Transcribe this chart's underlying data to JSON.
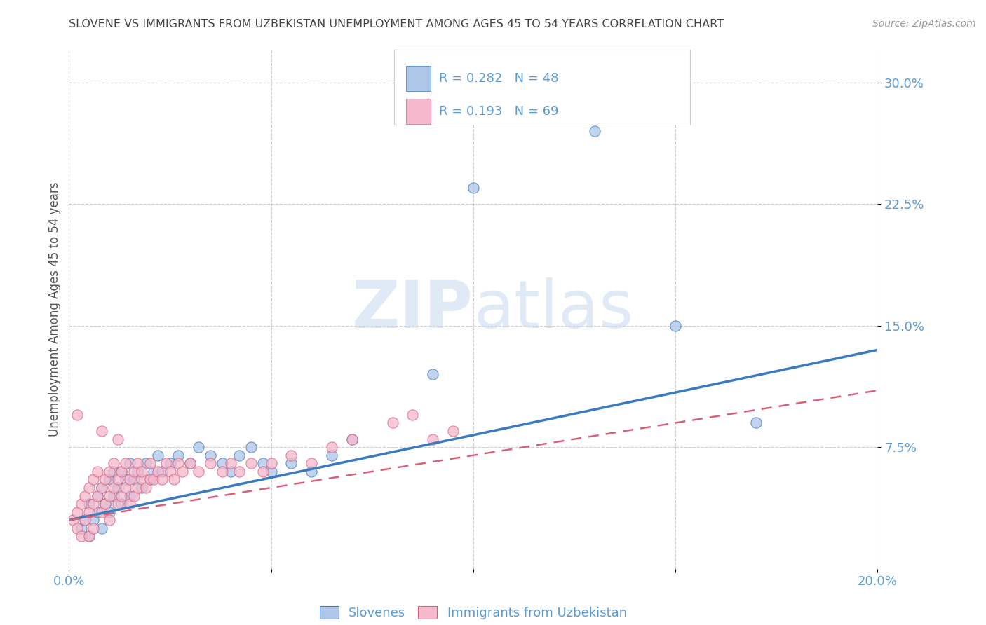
{
  "title": "SLOVENE VS IMMIGRANTS FROM UZBEKISTAN UNEMPLOYMENT AMONG AGES 45 TO 54 YEARS CORRELATION CHART",
  "source": "Source: ZipAtlas.com",
  "ylabel": "Unemployment Among Ages 45 to 54 years",
  "xlim": [
    0.0,
    0.2
  ],
  "ylim": [
    0.0,
    0.32
  ],
  "xtick_positions": [
    0.0,
    0.05,
    0.1,
    0.15,
    0.2
  ],
  "xticklabels": [
    "0.0%",
    "",
    "",
    "",
    "20.0%"
  ],
  "ytick_positions": [
    0.075,
    0.15,
    0.225,
    0.3
  ],
  "ytick_labels": [
    "7.5%",
    "15.0%",
    "22.5%",
    "30.0%"
  ],
  "legend_label1": "Slovenes",
  "legend_label2": "Immigrants from Uzbekistan",
  "R1": "0.282",
  "N1": "48",
  "R2": "0.193",
  "N2": "69",
  "color_blue": "#aec6e8",
  "color_pink": "#f5b8cc",
  "line_color_blue": "#3a7abf",
  "line_color_pink": "#d9607a",
  "title_color": "#444444",
  "tick_color": "#5b9bd5",
  "watermark_color": "#ccddf0",
  "blue_trend_x0": 0.0,
  "blue_trend_y0": 0.03,
  "blue_trend_x1": 0.2,
  "blue_trend_y1": 0.135,
  "pink_trend_x0": 0.0,
  "pink_trend_y0": 0.03,
  "pink_trend_x1": 0.2,
  "pink_trend_y1": 0.11,
  "scatter_blue_x": [
    0.003,
    0.004,
    0.005,
    0.005,
    0.006,
    0.007,
    0.007,
    0.008,
    0.008,
    0.009,
    0.01,
    0.01,
    0.011,
    0.011,
    0.012,
    0.013,
    0.013,
    0.014,
    0.015,
    0.015,
    0.016,
    0.017,
    0.018,
    0.019,
    0.02,
    0.021,
    0.022,
    0.023,
    0.025,
    0.027,
    0.03,
    0.032,
    0.035,
    0.038,
    0.04,
    0.042,
    0.045,
    0.048,
    0.05,
    0.055,
    0.06,
    0.065,
    0.07,
    0.09,
    0.1,
    0.13,
    0.15,
    0.17
  ],
  "scatter_blue_y": [
    0.025,
    0.03,
    0.02,
    0.04,
    0.03,
    0.035,
    0.045,
    0.025,
    0.05,
    0.04,
    0.035,
    0.055,
    0.06,
    0.045,
    0.05,
    0.04,
    0.06,
    0.055,
    0.065,
    0.045,
    0.055,
    0.06,
    0.05,
    0.065,
    0.055,
    0.06,
    0.07,
    0.06,
    0.065,
    0.07,
    0.065,
    0.075,
    0.07,
    0.065,
    0.06,
    0.07,
    0.075,
    0.065,
    0.06,
    0.065,
    0.06,
    0.07,
    0.08,
    0.12,
    0.235,
    0.27,
    0.15,
    0.09
  ],
  "scatter_pink_x": [
    0.001,
    0.002,
    0.002,
    0.003,
    0.003,
    0.004,
    0.004,
    0.005,
    0.005,
    0.005,
    0.006,
    0.006,
    0.006,
    0.007,
    0.007,
    0.008,
    0.008,
    0.009,
    0.009,
    0.01,
    0.01,
    0.01,
    0.011,
    0.011,
    0.012,
    0.012,
    0.013,
    0.013,
    0.014,
    0.014,
    0.015,
    0.015,
    0.016,
    0.016,
    0.017,
    0.017,
    0.018,
    0.018,
    0.019,
    0.02,
    0.02,
    0.021,
    0.022,
    0.023,
    0.024,
    0.025,
    0.026,
    0.027,
    0.028,
    0.03,
    0.032,
    0.035,
    0.038,
    0.04,
    0.042,
    0.045,
    0.048,
    0.05,
    0.055,
    0.06,
    0.065,
    0.07,
    0.08,
    0.085,
    0.09,
    0.095,
    0.002,
    0.008,
    0.012
  ],
  "scatter_pink_y": [
    0.03,
    0.025,
    0.035,
    0.02,
    0.04,
    0.03,
    0.045,
    0.035,
    0.05,
    0.02,
    0.04,
    0.055,
    0.025,
    0.045,
    0.06,
    0.035,
    0.05,
    0.04,
    0.055,
    0.03,
    0.045,
    0.06,
    0.05,
    0.065,
    0.04,
    0.055,
    0.045,
    0.06,
    0.05,
    0.065,
    0.04,
    0.055,
    0.045,
    0.06,
    0.05,
    0.065,
    0.055,
    0.06,
    0.05,
    0.055,
    0.065,
    0.055,
    0.06,
    0.055,
    0.065,
    0.06,
    0.055,
    0.065,
    0.06,
    0.065,
    0.06,
    0.065,
    0.06,
    0.065,
    0.06,
    0.065,
    0.06,
    0.065,
    0.07,
    0.065,
    0.075,
    0.08,
    0.09,
    0.095,
    0.08,
    0.085,
    0.095,
    0.085,
    0.08
  ]
}
